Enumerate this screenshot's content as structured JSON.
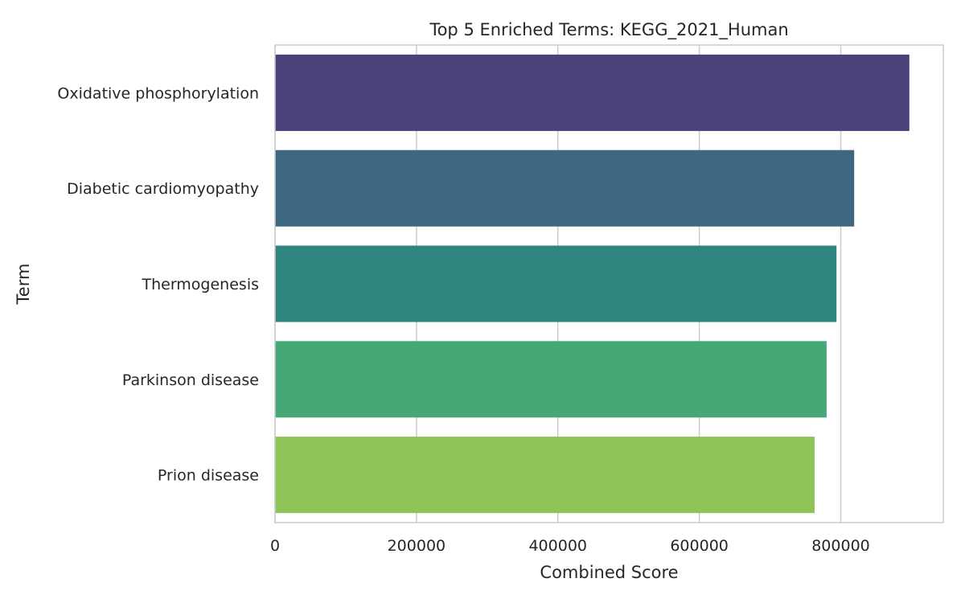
{
  "chart_data": {
    "type": "bar",
    "orientation": "horizontal",
    "title": "Top 5 Enriched Terms: KEGG_2021_Human",
    "xlabel": "Combined Score",
    "ylabel": "Term",
    "categories": [
      "Oxidative phosphorylation",
      "Diabetic cardiomyopathy",
      "Thermogenesis",
      "Parkinson disease",
      "Prion disease"
    ],
    "values": [
      897000,
      819000,
      794000,
      780000,
      763000
    ],
    "colors": [
      "#4b4179",
      "#3d6680",
      "#2e847f",
      "#46a877",
      "#8fc457"
    ],
    "xlim": [
      0,
      945000
    ],
    "xticks": [
      0,
      200000,
      400000,
      600000,
      800000
    ],
    "xtick_labels": [
      "0",
      "200000",
      "400000",
      "600000",
      "800000"
    ],
    "grid": true
  }
}
